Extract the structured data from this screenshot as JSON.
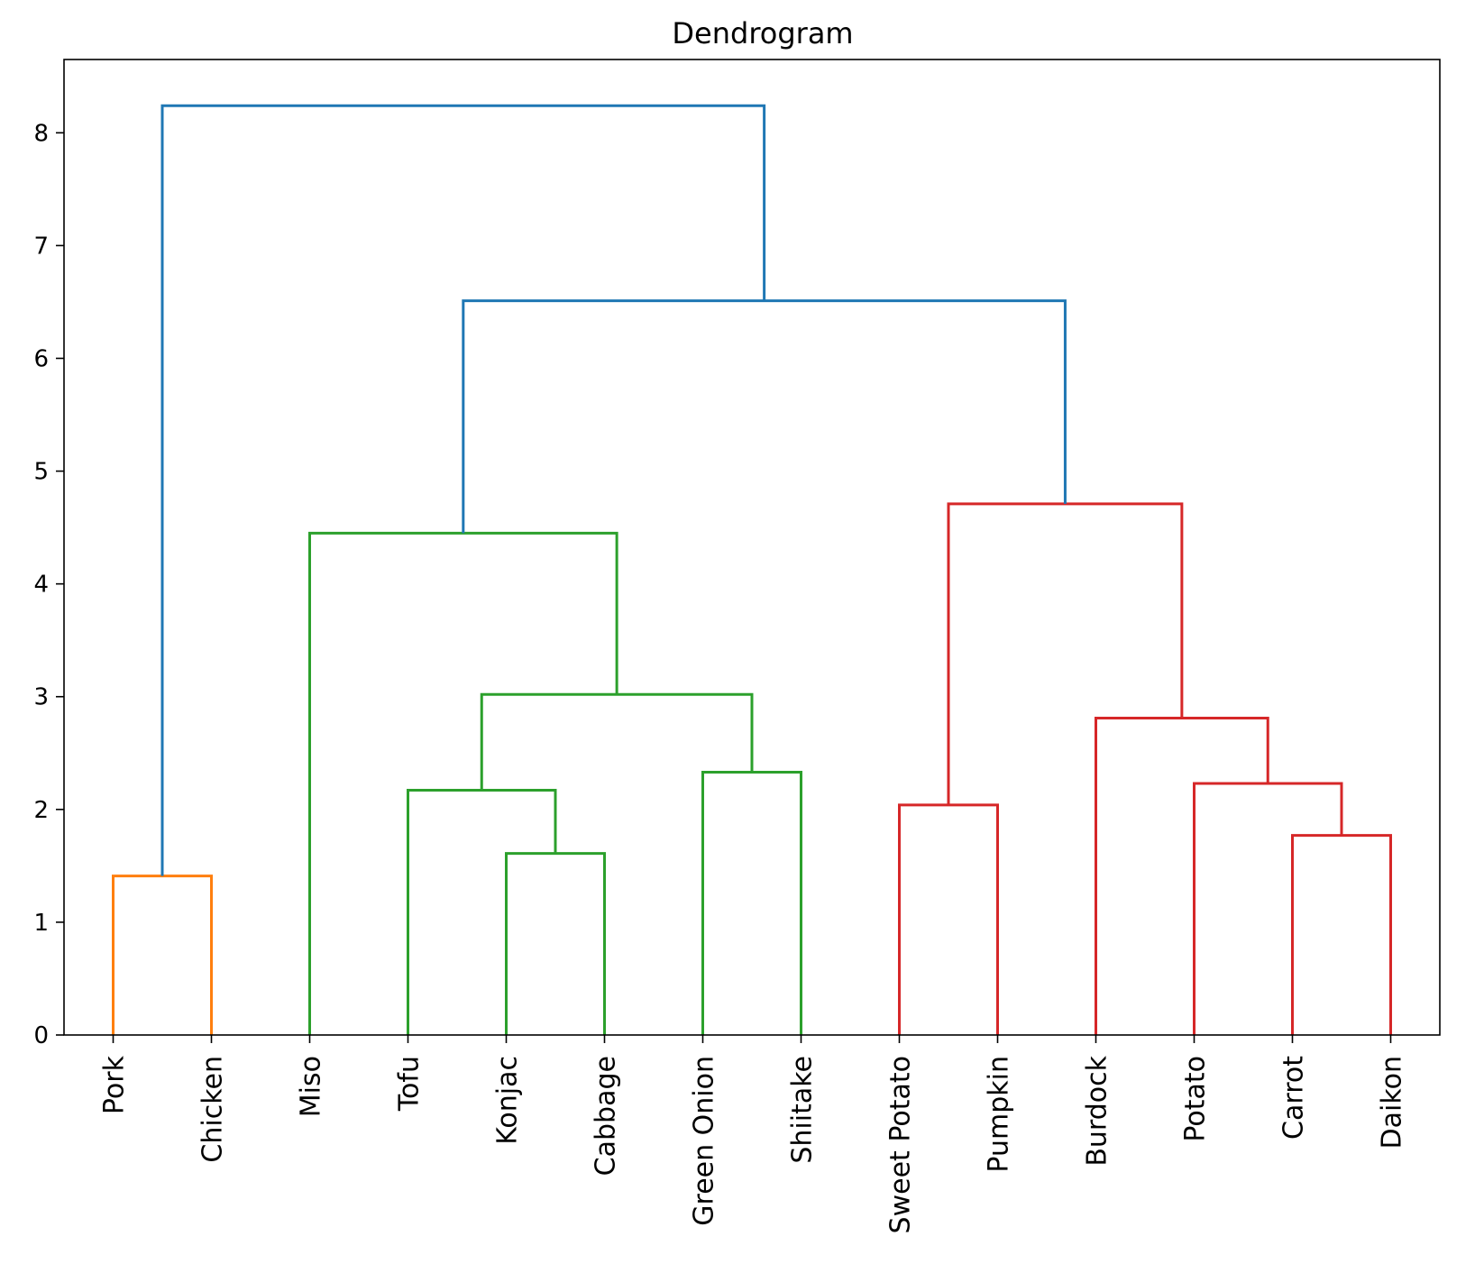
{
  "chart_data": {
    "type": "dendrogram",
    "title": "Dendrogram",
    "xlabel": "",
    "ylabel": "",
    "ylim": [
      0,
      8.65
    ],
    "yticks": [
      0,
      1,
      2,
      3,
      4,
      5,
      6,
      7,
      8
    ],
    "ytick_labels": [
      "0",
      "1",
      "2",
      "3",
      "4",
      "5",
      "6",
      "7",
      "8"
    ],
    "leaves": [
      "Pork",
      "Chicken",
      "Miso",
      "Tofu",
      "Konjac",
      "Cabbage",
      "Green Onion",
      "Shiitake",
      "Sweet Potato",
      "Pumpkin",
      "Burdock",
      "Potato",
      "Carrot",
      "Daikon"
    ],
    "colors": {
      "orange": "#ff7f0e",
      "green": "#2ca02c",
      "red": "#d62728",
      "blue": "#1f77b4"
    },
    "merges": [
      {
        "id": "pork_chicken",
        "children": [
          "Pork",
          "Chicken"
        ],
        "height": 1.41,
        "color": "orange"
      },
      {
        "id": "konjac_cabbage",
        "children": [
          "Konjac",
          "Cabbage"
        ],
        "height": 1.61,
        "color": "green"
      },
      {
        "id": "tofu_group",
        "children": [
          "Tofu",
          "konjac_cabbage"
        ],
        "height": 2.17,
        "color": "green"
      },
      {
        "id": "onion_shiitake",
        "children": [
          "Green Onion",
          "Shiitake"
        ],
        "height": 2.33,
        "color": "green"
      },
      {
        "id": "veg_group",
        "children": [
          "tofu_group",
          "onion_shiitake"
        ],
        "height": 3.02,
        "color": "green"
      },
      {
        "id": "miso_group",
        "children": [
          "Miso",
          "veg_group"
        ],
        "height": 4.45,
        "color": "green"
      },
      {
        "id": "sweetpotato_pumpkin",
        "children": [
          "Sweet Potato",
          "Pumpkin"
        ],
        "height": 2.04,
        "color": "red"
      },
      {
        "id": "carrot_daikon",
        "children": [
          "Carrot",
          "Daikon"
        ],
        "height": 1.77,
        "color": "red"
      },
      {
        "id": "potato_group",
        "children": [
          "Potato",
          "carrot_daikon"
        ],
        "height": 2.23,
        "color": "red"
      },
      {
        "id": "burdock_group",
        "children": [
          "Burdock",
          "potato_group"
        ],
        "height": 2.81,
        "color": "red"
      },
      {
        "id": "root_group",
        "children": [
          "sweetpotato_pumpkin",
          "burdock_group"
        ],
        "height": 4.71,
        "color": "red"
      },
      {
        "id": "plant_group",
        "children": [
          "miso_group",
          "root_group"
        ],
        "height": 6.51,
        "color": "blue"
      },
      {
        "id": "all",
        "children": [
          "pork_chicken",
          "plant_group"
        ],
        "height": 8.24,
        "color": "blue"
      }
    ]
  }
}
